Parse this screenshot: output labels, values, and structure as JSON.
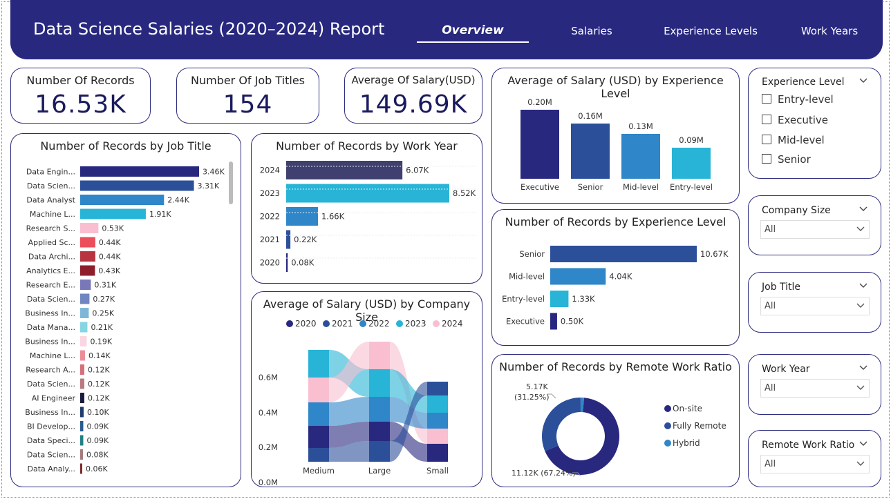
{
  "header": {
    "title": "Data Science Salaries (2020–2024) Report",
    "tabs": [
      "Overview",
      "Salaries",
      "Experience Levels",
      "Work Years"
    ]
  },
  "kpis": [
    {
      "label": "Number Of Records",
      "value": "16.53K"
    },
    {
      "label": "Number Of Job Titles",
      "value": "154"
    },
    {
      "label": "Average Of Salary(USD)",
      "value": "149.69K"
    }
  ],
  "charts": {
    "job_title": {
      "title": "Number of Records by Job Title"
    },
    "work_year": {
      "title": "Number of Records by Work Year"
    },
    "company_size": {
      "title": "Average of Salary (USD) by Company Size"
    },
    "exp_salary": {
      "title": "Average of Salary (USD) by Experience Level"
    },
    "exp_records": {
      "title": "Number of Records by Experience Level"
    },
    "remote": {
      "title": "Number of Records by Remote Work Ratio"
    }
  },
  "chart_data": [
    {
      "type": "bar",
      "orientation": "horizontal",
      "title": "Number of Records by Job Title",
      "categories": [
        "Data Engin...",
        "Data Scien...",
        "Data Analyst",
        "Machine L...",
        "Research S...",
        "Applied Sc...",
        "Data Archi...",
        "Analytics E...",
        "Research E...",
        "Data Scien...",
        "Business In...",
        "Data Mana...",
        "Business In...",
        "Machine L...",
        "Research A...",
        "Data Scien...",
        "AI Engineer",
        "Business In...",
        "BI Develop...",
        "Data Speci...",
        "Data Scien...",
        "Data Analy..."
      ],
      "values": [
        3460,
        3310,
        2440,
        1910,
        530,
        440,
        440,
        430,
        310,
        270,
        250,
        210,
        190,
        140,
        120,
        120,
        120,
        100,
        90,
        90,
        80,
        60
      ],
      "labels": [
        "3.46K",
        "3.31K",
        "2.44K",
        "1.91K",
        "0.53K",
        "0.44K",
        "0.44K",
        "0.43K",
        "0.31K",
        "0.27K",
        "0.25K",
        "0.21K",
        "0.19K",
        "0.14K",
        "0.12K",
        "0.12K",
        "0.12K",
        "0.10K",
        "0.09K",
        "0.09K",
        "0.08K",
        "0.06K"
      ],
      "colors": [
        "#28287f",
        "#2c4f9a",
        "#2f86c8",
        "#28b4d6",
        "#f9bfd0",
        "#ec4e5a",
        "#b8343e",
        "#8e1e2a",
        "#7a77b8",
        "#6f86c0",
        "#7fb6d8",
        "#86d5e3",
        "#fad7e0",
        "#ed8c98",
        "#d4707a",
        "#b97a80",
        "#1a1a3e",
        "#1f3a6e",
        "#275a8e",
        "#217f86",
        "#a57a7a",
        "#7e2a2a"
      ]
    },
    {
      "type": "bar",
      "orientation": "horizontal",
      "title": "Number of Records by Work Year",
      "categories": [
        "2024",
        "2023",
        "2022",
        "2021",
        "2020"
      ],
      "values": [
        6070,
        8520,
        1660,
        220,
        80
      ],
      "labels": [
        "6.07K",
        "8.52K",
        "1.66K",
        "0.22K",
        "0.08K"
      ],
      "colors": [
        "#3f3f70",
        "#28b4d6",
        "#2f86c8",
        "#2c4f9a",
        "#28287f"
      ]
    },
    {
      "type": "bar",
      "title": "Average of Salary (USD) by Experience Level",
      "categories": [
        "Executive",
        "Senior",
        "Mid-level",
        "Entry-level"
      ],
      "values": [
        0.2,
        0.16,
        0.13,
        0.09
      ],
      "labels": [
        "0.20M",
        "0.16M",
        "0.13M",
        "0.09M"
      ],
      "colors": [
        "#28287f",
        "#2c4f9a",
        "#2f86c8",
        "#28b4d6"
      ]
    },
    {
      "type": "bar",
      "orientation": "horizontal",
      "title": "Number of Records by Experience Level",
      "categories": [
        "Senior",
        "Mid-level",
        "Entry-level",
        "Executive"
      ],
      "values": [
        10670,
        4040,
        1330,
        500
      ],
      "labels": [
        "10.67K",
        "4.04K",
        "1.33K",
        "0.50K"
      ],
      "colors": [
        "#2c4f9a",
        "#2f86c8",
        "#28b4d6",
        "#28287f"
      ]
    },
    {
      "type": "ribbon",
      "title": "Average of Salary (USD) by Company Size",
      "categories": [
        "Medium",
        "Large",
        "Small"
      ],
      "series_names": [
        "2020",
        "2021",
        "2022",
        "2023",
        "2024"
      ],
      "ylabels": [
        "0.6M",
        "0.4M",
        "0.2M",
        "0.0M"
      ],
      "colors": [
        "#28287f",
        "#2c4f9a",
        "#2f86c8",
        "#28b4d6",
        "#f9bfd0"
      ]
    },
    {
      "type": "pie",
      "title": "Number of Records by Remote Work Ratio",
      "categories": [
        "On-site",
        "Fully Remote",
        "Hybrid"
      ],
      "values": [
        11120,
        5170,
        240
      ],
      "labels": [
        "11.12K (67.24%)",
        "5.17K\n(31.25%)",
        ""
      ],
      "label_text": {
        "onsite": "11.12K (67.24%)",
        "remote_value": "5.17K",
        "remote_pct": "(31.25%)"
      },
      "colors": [
        "#28287f",
        "#2c4f9a",
        "#2f86c8"
      ]
    }
  ],
  "slicers": {
    "experience": {
      "title": "Experience Level",
      "options": [
        "Entry-level",
        "Executive",
        "Mid-level",
        "Senior"
      ]
    },
    "company_size": {
      "title": "Company Size",
      "value": "All"
    },
    "job_title": {
      "title": "Job Title",
      "value": "All"
    },
    "work_year": {
      "title": "Work Year",
      "value": "All"
    },
    "remote": {
      "title": "Remote Work Ratio",
      "value": "All"
    }
  }
}
